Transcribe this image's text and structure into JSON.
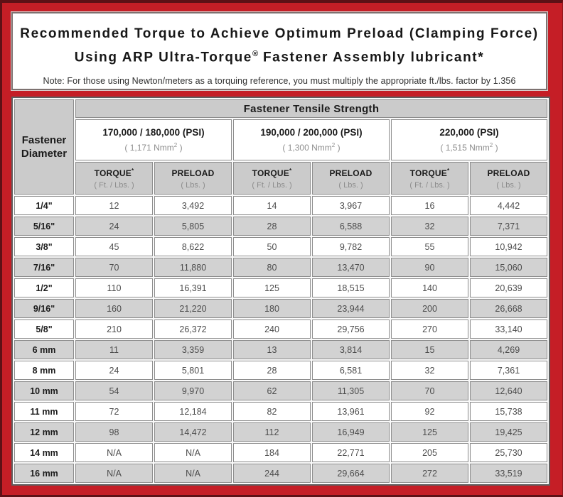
{
  "title": {
    "line1": "Recommended Torque to Achieve Optimum Preload (Clamping Force)",
    "line2_pre": "Using ARP Ultra-Torque",
    "line2_sup": "®",
    "line2_post": " Fastener Assembly lubricant*",
    "note": "Note: For those using Newton/meters as a torquing reference, you must multiply the appropriate ft./lbs. factor by 1.356"
  },
  "table": {
    "corner": {
      "line1": "Fastener",
      "line2": "Diameter"
    },
    "tensile_strength_header": "Fastener Tensile Strength",
    "psi_groups": [
      {
        "psi": "170,000 / 180,000 (PSI)",
        "nmm_pre": "( 1,171 Nmm",
        "nmm_sup": "2",
        "nmm_post": " )"
      },
      {
        "psi": "190,000 / 200,000 (PSI)",
        "nmm_pre": "( 1,300 Nmm",
        "nmm_sup": "2",
        "nmm_post": " )"
      },
      {
        "psi": "220,000 (PSI)",
        "nmm_pre": "( 1,515 Nmm",
        "nmm_sup": "2",
        "nmm_post": " )"
      }
    ],
    "column_headers": [
      {
        "label": "TORQUE",
        "sup": "*",
        "unit": "( Ft. / Lbs. )"
      },
      {
        "label": "PRELOAD",
        "sup": "",
        "unit": "( Lbs. )"
      },
      {
        "label": "TORQUE",
        "sup": "*",
        "unit": "( Ft. / Lbs. )"
      },
      {
        "label": "PRELOAD",
        "sup": "",
        "unit": "( Lbs. )"
      },
      {
        "label": "TORQUE",
        "sup": "*",
        "unit": "( Ft. / Lbs. )"
      },
      {
        "label": "PRELOAD",
        "sup": "",
        "unit": "( Lbs. )"
      }
    ],
    "rows": [
      {
        "diameter": "1/4\"",
        "values": [
          "12",
          "3,492",
          "14",
          "3,967",
          "16",
          "4,442"
        ]
      },
      {
        "diameter": "5/16\"",
        "values": [
          "24",
          "5,805",
          "28",
          "6,588",
          "32",
          "7,371"
        ]
      },
      {
        "diameter": "3/8\"",
        "values": [
          "45",
          "8,622",
          "50",
          "9,782",
          "55",
          "10,942"
        ]
      },
      {
        "diameter": "7/16\"",
        "values": [
          "70",
          "11,880",
          "80",
          "13,470",
          "90",
          "15,060"
        ]
      },
      {
        "diameter": "1/2\"",
        "values": [
          "110",
          "16,391",
          "125",
          "18,515",
          "140",
          "20,639"
        ]
      },
      {
        "diameter": "9/16\"",
        "values": [
          "160",
          "21,220",
          "180",
          "23,944",
          "200",
          "26,668"
        ]
      },
      {
        "diameter": "5/8\"",
        "values": [
          "210",
          "26,372",
          "240",
          "29,756",
          "270",
          "33,140"
        ]
      },
      {
        "diameter": "6 mm",
        "values": [
          "11",
          "3,359",
          "13",
          "3,814",
          "15",
          "4,269"
        ]
      },
      {
        "diameter": "8 mm",
        "values": [
          "24",
          "5,801",
          "28",
          "6,581",
          "32",
          "7,361"
        ]
      },
      {
        "diameter": "10 mm",
        "values": [
          "54",
          "9,970",
          "62",
          "11,305",
          "70",
          "12,640"
        ]
      },
      {
        "diameter": "11 mm",
        "values": [
          "72",
          "12,184",
          "82",
          "13,961",
          "92",
          "15,738"
        ]
      },
      {
        "diameter": "12 mm",
        "values": [
          "98",
          "14,472",
          "112",
          "16,949",
          "125",
          "19,425"
        ]
      },
      {
        "diameter": "14 mm",
        "values": [
          "N/A",
          "N/A",
          "184",
          "22,771",
          "205",
          "25,730"
        ]
      },
      {
        "diameter": "16 mm",
        "values": [
          "N/A",
          "N/A",
          "244",
          "29,664",
          "272",
          "33,519"
        ]
      }
    ]
  },
  "colors": {
    "frame_red": "#c51e26",
    "frame_dark": "#5e1116",
    "header_gray": "#cbcbcb",
    "stripe_gray": "#d2d2d2",
    "cell_border": "#8d8d8d"
  }
}
